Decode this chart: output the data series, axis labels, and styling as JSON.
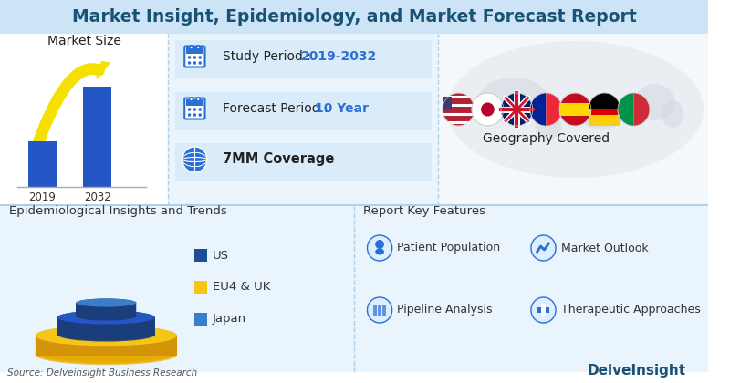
{
  "title": "Market Insight, Epidemiology, and Market Forecast Report",
  "title_color": "#1a5276",
  "title_fontsize": 13.5,
  "bg_color": "#ffffff",
  "top_section_bg": "#eaf4fd",
  "bottom_section_bg": "#eaf4fd",
  "header_bg": "#cce4f6",
  "study_period_label": "Study Period : ",
  "study_period_value": "2019-2032",
  "forecast_label": "Forecast Period : ",
  "forecast_value": "10 Year",
  "coverage": "7MM Coverage",
  "market_size_label": "Market Size",
  "year_start": "2019",
  "year_end": "2032",
  "geography_label": "Geography Covered",
  "epi_label": "Epidemiological Insights and Trends",
  "features_label": "Report Key Features",
  "legend_items": [
    "US",
    "EU4 & UK",
    "Japan"
  ],
  "legend_colors": [
    "#1f4e96",
    "#f5c518",
    "#3a7dc9"
  ],
  "features": [
    "Patient Population",
    "Market Outlook",
    "Pipeline Analysis",
    "Therapeutic Approaches"
  ],
  "source_text": "Source: Delveinsight Business Research",
  "logo_text": "DelveInsight",
  "accent_color": "#2e86c1",
  "highlight_color": "#3a7dc9",
  "bar_color": "#2457c5",
  "arrow_color": "#f5e100",
  "section_divider_color": "#b0d0ea",
  "row_bg_color": "#d6eaf8"
}
